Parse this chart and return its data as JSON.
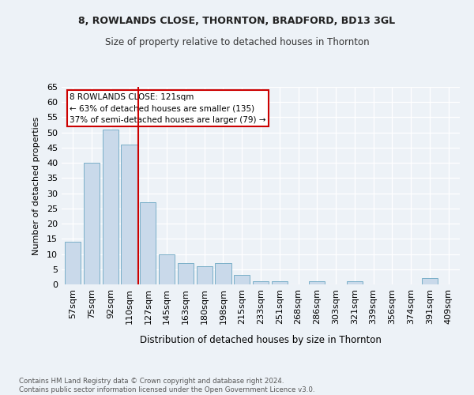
{
  "title1": "8, ROWLANDS CLOSE, THORNTON, BRADFORD, BD13 3GL",
  "title2": "Size of property relative to detached houses in Thornton",
  "xlabel": "Distribution of detached houses by size in Thornton",
  "ylabel": "Number of detached properties",
  "categories": [
    "57sqm",
    "75sqm",
    "92sqm",
    "110sqm",
    "127sqm",
    "145sqm",
    "163sqm",
    "180sqm",
    "198sqm",
    "215sqm",
    "233sqm",
    "251sqm",
    "268sqm",
    "286sqm",
    "303sqm",
    "321sqm",
    "339sqm",
    "356sqm",
    "374sqm",
    "391sqm",
    "409sqm"
  ],
  "values": [
    14,
    40,
    51,
    46,
    27,
    10,
    7,
    6,
    7,
    3,
    1,
    1,
    0,
    1,
    0,
    1,
    0,
    0,
    0,
    2,
    0
  ],
  "bar_color": "#c9d9ea",
  "bar_edge_color": "#7aafc8",
  "ylim": [
    0,
    65
  ],
  "yticks": [
    0,
    5,
    10,
    15,
    20,
    25,
    30,
    35,
    40,
    45,
    50,
    55,
    60,
    65
  ],
  "annotation_line1": "8 ROWLANDS CLOSE: 121sqm",
  "annotation_line2": "← 63% of detached houses are smaller (135)",
  "annotation_line3": "37% of semi-detached houses are larger (79) →",
  "annotation_box_color": "#ffffff",
  "annotation_box_edge": "#cc0000",
  "vline_color": "#cc0000",
  "footer_text": "Contains HM Land Registry data © Crown copyright and database right 2024.\nContains public sector information licensed under the Open Government Licence v3.0.",
  "bg_color": "#edf2f7",
  "plot_bg_color": "#edf2f7",
  "title1_fontsize": 9,
  "title2_fontsize": 8.5
}
